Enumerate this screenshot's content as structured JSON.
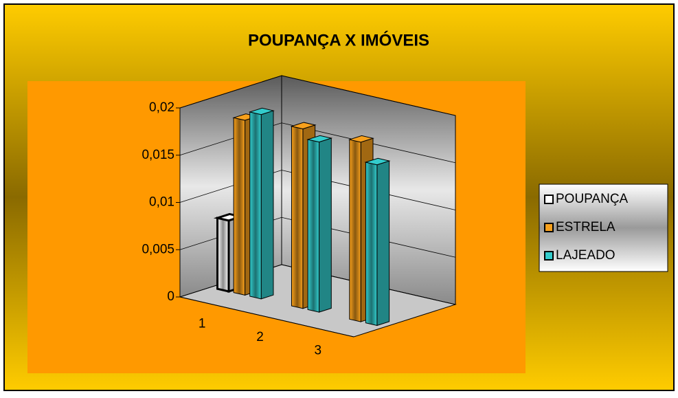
{
  "chart_data": {
    "type": "bar3d",
    "title": "POUPANÇA X IMÓVEIS",
    "categories": [
      "1",
      "2",
      "3"
    ],
    "series": [
      {
        "name": "POUPANÇA",
        "color": "#ffffff",
        "values": [
          0.0075,
          null,
          null
        ]
      },
      {
        "name": "ESTRELA",
        "color": "#f7a01c",
        "values": [
          0.0185,
          0.019,
          0.019
        ]
      },
      {
        "name": "LAJEADO",
        "color": "#33cccc",
        "values": [
          0.0195,
          0.018,
          0.017
        ]
      }
    ],
    "ylim": [
      0,
      0.02
    ],
    "yticks": [
      0,
      {
        "value": 0.005,
        "label": "0,005"
      },
      {
        "value": 0.01,
        "label": "0,01"
      },
      {
        "value": 0.015,
        "label": "0,015"
      },
      {
        "value": 0.02,
        "label": "0,02"
      }
    ],
    "grid": true,
    "legend": "right"
  }
}
